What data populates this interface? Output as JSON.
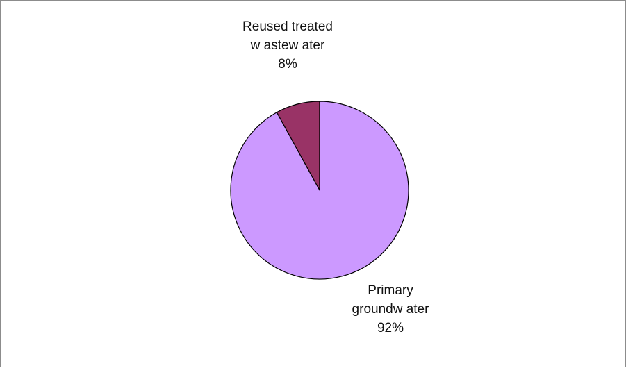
{
  "chart_data": {
    "type": "pie",
    "title": "",
    "slices": [
      {
        "label_lines": [
          "Reused treated",
          "w astew ater"
        ],
        "percent_label": "8%",
        "value": 8,
        "color": "#993366"
      },
      {
        "label_lines": [
          "Primary",
          "groundw ater"
        ],
        "percent_label": "92%",
        "value": 92,
        "color": "#cc99ff"
      }
    ],
    "legend": "none",
    "start_angle_deg": 0,
    "direction": "counterclockwise"
  }
}
